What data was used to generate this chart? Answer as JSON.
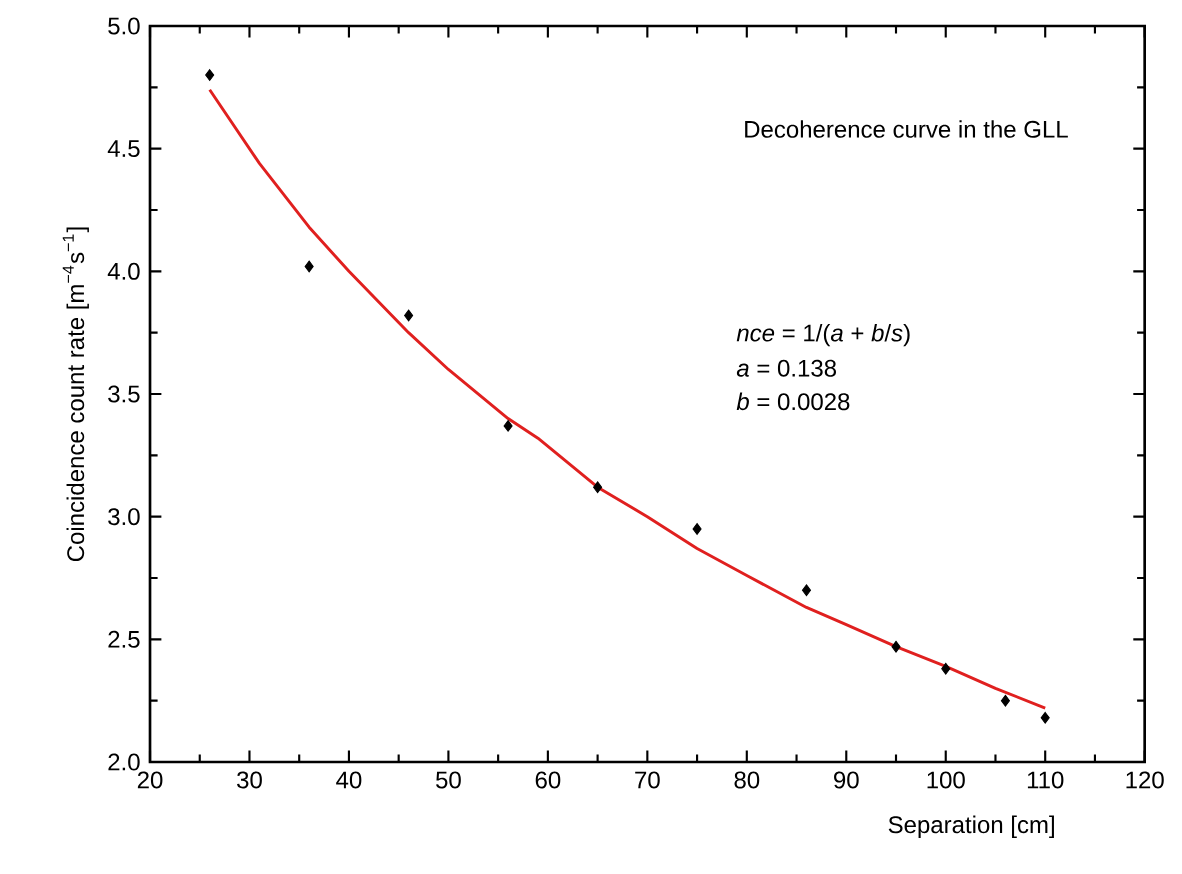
{
  "chart_data": {
    "type": "scatter",
    "xlabel": "Separation [cm]",
    "ylabel": "Coincidence count rate [m$^{−4}$s$^{−1}$]",
    "annotations": [
      "Decoherence curve in the GLL",
      "*nce* = 1/(*a* + *b*/*s*)",
      "*a* = 0.138",
      "*b* = 0.0028"
    ],
    "xlim": [
      20,
      120
    ],
    "ylim": [
      2.0,
      5.0
    ],
    "xticks": [
      20,
      30,
      40,
      50,
      60,
      70,
      80,
      90,
      100,
      110,
      120
    ],
    "yticks": [
      {
        "value": 2.0,
        "label": "2.0"
      },
      {
        "value": 2.5,
        "label": "2.5"
      },
      {
        "value": 3.0,
        "label": "3.0"
      },
      {
        "value": 3.5,
        "label": "3.5"
      },
      {
        "value": 4.0,
        "label": "4.0"
      },
      {
        "value": 4.5,
        "label": "4.5"
      },
      {
        "value": 5.0,
        "label": "5.0"
      }
    ],
    "grid": false,
    "series": [
      {
        "marker": "diamond",
        "color": "#000000",
        "x": [
          26,
          36,
          46,
          56,
          65,
          75,
          86,
          95,
          100,
          106,
          110
        ],
        "values": [
          4.8,
          4.02,
          3.82,
          3.37,
          3.12,
          2.95,
          2.7,
          2.47,
          2.38,
          2.25,
          2.18
        ]
      },
      {
        "type": "line",
        "marker": "none",
        "line_style": "solid",
        "color": "#e0201f",
        "x": [
          26,
          31,
          36,
          40,
          46,
          50,
          56,
          59,
          65,
          70,
          75,
          80,
          86,
          90,
          95,
          100,
          105,
          110
        ],
        "values": [
          4.74,
          4.44,
          4.18,
          4.0,
          3.75,
          3.6,
          3.4,
          3.32,
          3.12,
          3.0,
          2.87,
          2.76,
          2.63,
          2.56,
          2.47,
          2.39,
          2.3,
          2.22
        ]
      }
    ]
  }
}
